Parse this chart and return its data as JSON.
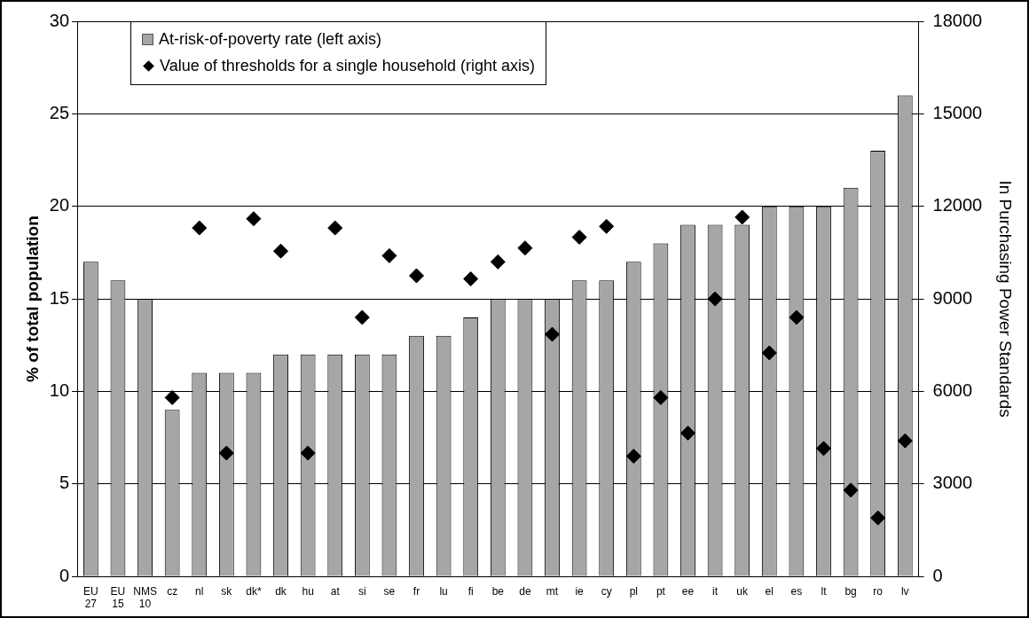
{
  "chart_data": {
    "type": "bar",
    "ylabel": "% of total population",
    "y2label": "In Purchasing Power Standards",
    "categories": [
      "EU 27",
      "EU 15",
      "NMS 10",
      "cz",
      "nl",
      "sk",
      "dk*",
      "dk",
      "hu",
      "at",
      "si",
      "se",
      "fr",
      "lu",
      "fi",
      "be",
      "de",
      "mt",
      "ie",
      "cy",
      "pl",
      "pt",
      "ee",
      "it",
      "uk",
      "el",
      "es",
      "lt",
      "bg",
      "ro",
      "lv"
    ],
    "series": [
      {
        "name": "At-risk-of-poverty rate (left axis)",
        "color": "#a6a6a6",
        "values": [
          17,
          16,
          15,
          9,
          11,
          11,
          11,
          12,
          12,
          12,
          12,
          12,
          13,
          13,
          14,
          15,
          15,
          15,
          16,
          16,
          17,
          18,
          19,
          19,
          19,
          20,
          20,
          20,
          21,
          23,
          26
        ]
      },
      {
        "name": "Value of thresholds for a single household (right axis)",
        "type": "scatter",
        "axis": "y2",
        "color": "#000000",
        "values": [
          null,
          null,
          null,
          5800,
          11300,
          4000,
          11600,
          10550,
          4000,
          11300,
          8400,
          10400,
          9750,
          null,
          9650,
          10200,
          10650,
          7850,
          11000,
          11350,
          3900,
          5800,
          4650,
          9000,
          11650,
          7250,
          8400,
          4150,
          2800,
          1900,
          4400
        ]
      }
    ],
    "ylim": [
      0,
      30
    ],
    "yticks": [
      0,
      5,
      10,
      15,
      20,
      25,
      30
    ],
    "y2lim": [
      0,
      18000
    ],
    "y2ticks": [
      0,
      3000,
      6000,
      9000,
      12000,
      15000,
      18000
    ],
    "grid": "y",
    "legend": "top left",
    "marker": "diamond"
  }
}
